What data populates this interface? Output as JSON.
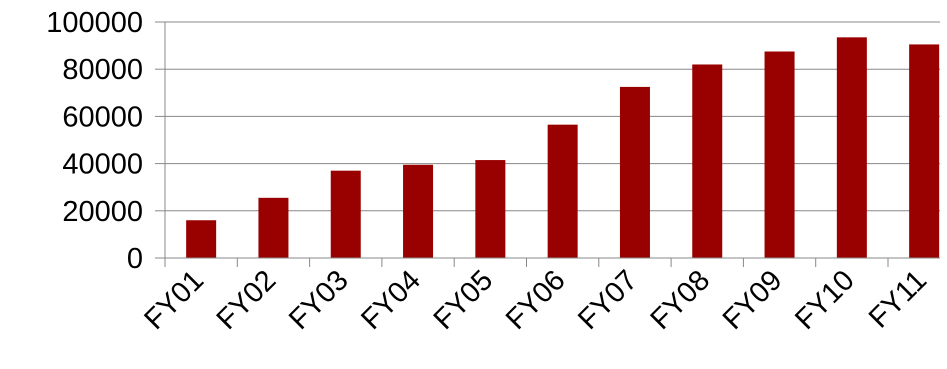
{
  "chart_data": {
    "type": "bar",
    "categories": [
      "FY01",
      "FY02",
      "FY03",
      "FY04",
      "FY05",
      "FY06",
      "FY07",
      "FY08",
      "FY09",
      "FY10",
      "FY11"
    ],
    "series": [
      {
        "values": [
          16000,
          25500,
          37000,
          39500,
          41500,
          56500,
          72500,
          82000,
          87500,
          93500,
          90500
        ]
      }
    ],
    "ylim": [
      0,
      100000
    ],
    "yticks": [
      0,
      20000,
      40000,
      60000,
      80000,
      100000
    ],
    "grid": true,
    "bar_color": "#990000",
    "grid_color": "#888888",
    "axis_color": "#888888"
  }
}
